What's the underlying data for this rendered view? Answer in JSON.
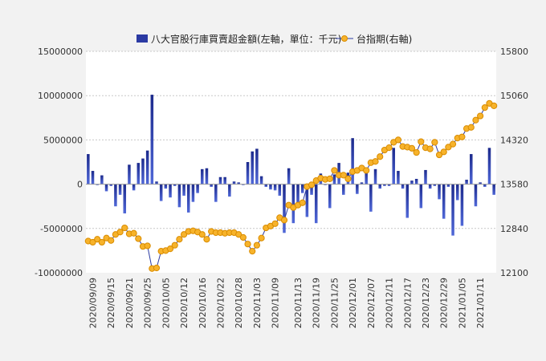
{
  "chart_data": {
    "type": "bar",
    "legend": {
      "bar_label": "八大官股行庫買賣超金額(左軸，單位：千元)",
      "line_label": "台指期(右軸)"
    },
    "y_left": {
      "ylim": [
        -10000000,
        15000000
      ],
      "ticks": [
        "15000000",
        "10000000",
        "5000000",
        "0",
        "-5000000",
        "-10000000"
      ]
    },
    "y_right": {
      "ylim": [
        12100,
        15800
      ],
      "ticks": [
        "15800",
        "15060",
        "14320",
        "13580",
        "12840",
        "12100"
      ]
    },
    "x_tick_labels": [
      "2020/09/09",
      "2020/09/15",
      "2020/09/21",
      "2020/09/25",
      "2020/10/05",
      "2020/10/12",
      "2020/10/16",
      "2020/10/22",
      "2020/10/28",
      "2020/11/03",
      "2020/11/09",
      "2020/11/13",
      "2020/11/19",
      "2020/11/25",
      "2020/12/01",
      "2020/12/07",
      "2020/12/11",
      "2020/12/17",
      "2020/12/23",
      "2020/12/29",
      "2021/01/05",
      "2021/01/11"
    ],
    "series": [
      {
        "name": "八大官股行庫買賣超金額(左軸，單位：千元)",
        "kind": "bar",
        "color": "#2b3aa3",
        "values": [
          3400000,
          1500000,
          -100000,
          1000000,
          -800000,
          -200000,
          -2500000,
          -1200000,
          -3300000,
          2200000,
          -700000,
          2400000,
          2900000,
          3800000,
          10100000,
          300000,
          -1900000,
          -500000,
          -1500000,
          -200000,
          -2600000,
          -1300000,
          -3200000,
          -2000000,
          -1000000,
          1700000,
          1800000,
          -300000,
          -2000000,
          800000,
          800000,
          -1400000,
          300000,
          200000,
          -100000,
          2500000,
          3700000,
          4000000,
          900000,
          -300000,
          -600000,
          -700000,
          -1300000,
          -5500000,
          1800000,
          -4400000,
          -2500000,
          -1000000,
          -3700000,
          -1200000,
          -4400000,
          1200000,
          -100000,
          -2700000,
          1100000,
          2400000,
          -1200000,
          1300000,
          5200000,
          -1100000,
          200000,
          1500000,
          -3100000,
          1700000,
          -500000,
          -200000,
          -200000,
          4100000,
          1500000,
          -500000,
          -3800000,
          400000,
          600000,
          -2700000,
          1600000,
          -500000,
          -200000,
          -1700000,
          -3900000,
          -300000,
          -5800000,
          -1800000,
          -4700000,
          500000,
          3400000,
          -2500000,
          200000,
          -300000,
          4100000,
          -1200000
        ]
      },
      {
        "name": "台指期(右軸)",
        "kind": "line",
        "color": "#f0a020",
        "values": [
          12630,
          12610,
          12660,
          12610,
          12680,
          12640,
          12740,
          12780,
          12850,
          12750,
          12760,
          12670,
          12540,
          12550,
          12170,
          12180,
          12460,
          12470,
          12500,
          12560,
          12660,
          12740,
          12790,
          12800,
          12780,
          12740,
          12660,
          12790,
          12770,
          12770,
          12760,
          12770,
          12770,
          12740,
          12690,
          12580,
          12460,
          12560,
          12680,
          12850,
          12880,
          12920,
          13020,
          12980,
          13230,
          13190,
          13230,
          13270,
          13540,
          13570,
          13640,
          13680,
          13660,
          13670,
          13810,
          13730,
          13730,
          13670,
          13790,
          13810,
          13850,
          13810,
          13940,
          13960,
          14040,
          14150,
          14190,
          14280,
          14320,
          14210,
          14200,
          14180,
          14110,
          14290,
          14190,
          14170,
          14280,
          14070,
          14120,
          14200,
          14250,
          14350,
          14370,
          14510,
          14530,
          14650,
          14720,
          14860,
          14930,
          14890
        ]
      }
    ],
    "grid": true,
    "plot_area_color": "#ffffff"
  }
}
